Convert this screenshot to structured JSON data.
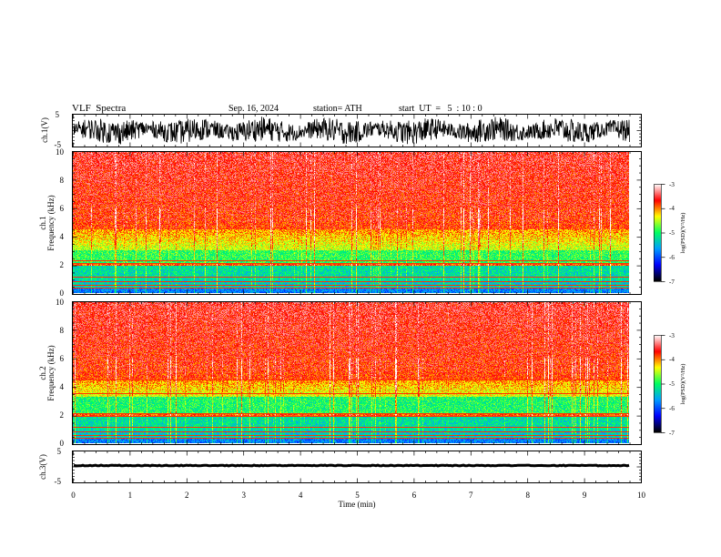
{
  "header": {
    "title": "VLF  Spectra",
    "date": "Sep. 16, 2024",
    "station": "station= ATH",
    "start_ut": "start  UT  =   5  : 10 : 0"
  },
  "chart_data": [
    {
      "type": "line",
      "panel": "ch1-waveform",
      "ylabel": "ch.1(V)",
      "yticks": [
        "5",
        "-5"
      ],
      "ylim": [
        -5,
        5
      ],
      "xlim": [
        0,
        10
      ],
      "data_end_min": 9.8,
      "description_values": {
        "amplitude_range": [
          -4.5,
          4.5
        ]
      }
    },
    {
      "type": "heatmap",
      "panel": "ch1-spectrogram",
      "ylabel_lines": [
        "ch.1",
        "Frequency  (kHz)"
      ],
      "yticks": [
        "0",
        "2",
        "4",
        "6",
        "8",
        "10"
      ],
      "ylim": [
        0,
        10
      ],
      "xlim": [
        0,
        10
      ],
      "data_end_min": 9.8,
      "colorbar": {
        "label": "log(PSD)(V²/Hz)",
        "ticks": [
          "-3",
          "-4",
          "-5",
          "-6",
          "-7"
        ],
        "range": [
          -7,
          -3
        ]
      },
      "line_freqs_khz": [
        0.3,
        0.55,
        0.8,
        1.1,
        2.05,
        2.25
      ]
    },
    {
      "type": "heatmap",
      "panel": "ch2-spectrogram",
      "ylabel_lines": [
        "ch.2",
        "Frequency  (kHz)"
      ],
      "yticks": [
        "0",
        "2",
        "4",
        "6",
        "8",
        "10"
      ],
      "ylim": [
        0,
        10
      ],
      "xlim": [
        0,
        10
      ],
      "data_end_min": 9.8,
      "colorbar": {
        "label": "log(PSD)(V²/Hz)",
        "ticks": [
          "-3",
          "-4",
          "-5",
          "-6",
          "-7"
        ],
        "range": [
          -7,
          -3
        ]
      },
      "line_freqs_khz": [
        0.3,
        0.55,
        0.8,
        1.1,
        1.9,
        2.05,
        3.5,
        4.5
      ]
    },
    {
      "type": "line",
      "panel": "ch3-waveform",
      "ylabel": "ch.3(V)",
      "yticks": [
        "5",
        "-5"
      ],
      "ylim": [
        -5,
        5
      ],
      "xlim": [
        0,
        10
      ],
      "data_end_min": 9.8,
      "xlabel": "Time  (min)",
      "xticks": [
        "0",
        "1",
        "2",
        "3",
        "4",
        "5",
        "6",
        "7",
        "8",
        "9",
        "10"
      ]
    }
  ],
  "colors": {
    "scale": [
      "#000000",
      "#0000ff",
      "#00a0ff",
      "#00ff60",
      "#ffff00",
      "#ff0000",
      "#ffffff"
    ],
    "axis": "#000000"
  }
}
